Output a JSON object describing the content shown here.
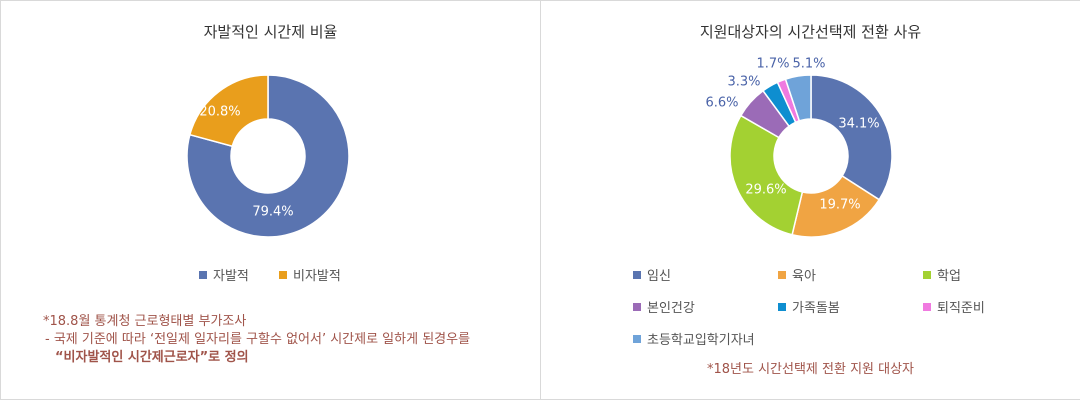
{
  "chart_data": [
    {
      "type": "pie",
      "donut": true,
      "title": "자발적인 시간제 비율",
      "slices": [
        {
          "label": "자발적",
          "value": 79.4,
          "display": "79.4%",
          "color": "#5a74b0"
        },
        {
          "label": "비자발적",
          "value": 20.8,
          "display": "20.8%",
          "color": "#e99e1c"
        }
      ],
      "legend_position": "bottom"
    },
    {
      "type": "pie",
      "donut": true,
      "title": "지원대상자의 시간선택제 전환 사유",
      "slices": [
        {
          "label": "임신",
          "value": 34.1,
          "display": "34.1%",
          "color": "#5a74b0"
        },
        {
          "label": "육아",
          "value": 19.7,
          "display": "19.7%",
          "color": "#f0a443"
        },
        {
          "label": "학업",
          "value": 29.6,
          "display": "29.6%",
          "color": "#a3d132"
        },
        {
          "label": "본인건강",
          "value": 6.6,
          "display": "6.6%",
          "color": "#9b6bb7"
        },
        {
          "label": "가족돌봄",
          "value": 3.3,
          "display": "3.3%",
          "color": "#0e8ed0"
        },
        {
          "label": "퇴직준비",
          "value": 1.7,
          "display": "1.7%",
          "color": "#f07ae0"
        },
        {
          "label": "초등학교입학기자녀",
          "value": 5.1,
          "display": "5.1%",
          "color": "#6fa3d9"
        }
      ],
      "legend_position": "bottom"
    }
  ],
  "notes": {
    "left": [
      "*18.8월 통계청 근로형태별 부가조사",
      "- 국제 기준에 따라 ‘전일제 일자리를 구할수 없어서’ 시간제로 일하게 된경우를",
      "“비자발적인 시간제근로자”로 정의"
    ],
    "right": "*18년도 시간선택제 전환 지원 대상자"
  }
}
